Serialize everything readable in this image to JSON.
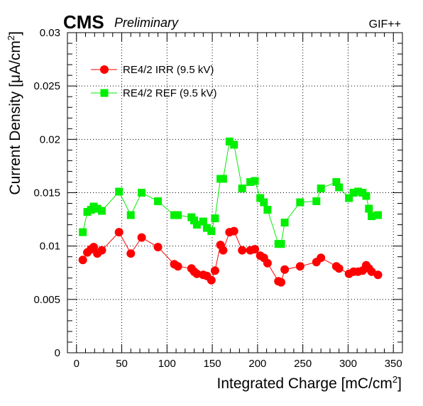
{
  "chart_data": {
    "type": "line",
    "title": "CMS",
    "subtitle": "Preliminary",
    "annotation": "GIF++",
    "xlabel": "Integrated Charge [mC/cm",
    "xlabel_sup": "2",
    "xlabel_end": "]",
    "ylabel": "Current Density [μA/cm",
    "ylabel_sup": "2",
    "ylabel_end": "]",
    "xlim": [
      -10,
      360
    ],
    "ylim": [
      0,
      0.03
    ],
    "xticks": [
      0,
      50,
      100,
      150,
      200,
      250,
      300,
      350
    ],
    "xtick_labels": [
      "0",
      "50",
      "100",
      "150",
      "200",
      "250",
      "300",
      "350"
    ],
    "yticks": [
      0,
      0.005,
      0.01,
      0.015,
      0.02,
      0.025,
      0.03
    ],
    "ytick_labels": [
      "0",
      "0.005",
      "0.01",
      "0.015",
      "0.02",
      "0.025",
      "0.03"
    ],
    "grid": true,
    "legend_position": "top-left",
    "series": [
      {
        "name": "RE4/2 IRR (9.5 kV)",
        "color": "#ff0000",
        "marker": "circle",
        "x": [
          7,
          12,
          16,
          19,
          23,
          28,
          47,
          60,
          72,
          90,
          108,
          112,
          127,
          130,
          133,
          140,
          144,
          149,
          153,
          159,
          162,
          169,
          174,
          183,
          192,
          197,
          203,
          207,
          211,
          223,
          226,
          230,
          247,
          265,
          270,
          287,
          290,
          301,
          306,
          311,
          316,
          320,
          323,
          326,
          333
        ],
        "y": [
          0.0087,
          0.0094,
          0.0097,
          0.0099,
          0.0093,
          0.0096,
          0.0113,
          0.0093,
          0.0108,
          0.0099,
          0.0083,
          0.0081,
          0.0079,
          0.0076,
          0.0074,
          0.0073,
          0.0072,
          0.0068,
          0.0077,
          0.0101,
          0.0096,
          0.0113,
          0.0114,
          0.0096,
          0.0096,
          0.0097,
          0.0091,
          0.0089,
          0.0084,
          0.0067,
          0.0066,
          0.0078,
          0.0081,
          0.0085,
          0.0089,
          0.0081,
          0.0079,
          0.0074,
          0.0076,
          0.0076,
          0.0077,
          0.0082,
          0.0079,
          0.0076,
          0.0073
        ]
      },
      {
        "name": "RE4/2 REF (9.5 kV)",
        "color": "#00ee00",
        "marker": "square",
        "x": [
          7,
          12,
          16,
          19,
          23,
          28,
          47,
          60,
          72,
          90,
          108,
          112,
          127,
          130,
          133,
          140,
          144,
          149,
          153,
          159,
          162,
          169,
          174,
          183,
          192,
          197,
          203,
          207,
          211,
          223,
          226,
          230,
          247,
          265,
          270,
          287,
          290,
          301,
          306,
          311,
          316,
          320,
          323,
          326,
          333
        ],
        "y": [
          0.0113,
          0.0132,
          0.0134,
          0.0137,
          0.0135,
          0.0133,
          0.0151,
          0.0129,
          0.015,
          0.0142,
          0.0129,
          0.0129,
          0.0127,
          0.0124,
          0.012,
          0.0123,
          0.0117,
          0.0114,
          0.0126,
          0.0163,
          0.0163,
          0.0198,
          0.0195,
          0.0154,
          0.016,
          0.0161,
          0.0145,
          0.0141,
          0.0134,
          0.0102,
          0.0102,
          0.0122,
          0.0141,
          0.0142,
          0.0154,
          0.016,
          0.0155,
          0.0145,
          0.015,
          0.0151,
          0.015,
          0.0147,
          0.0135,
          0.0128,
          0.0129
        ]
      }
    ]
  }
}
